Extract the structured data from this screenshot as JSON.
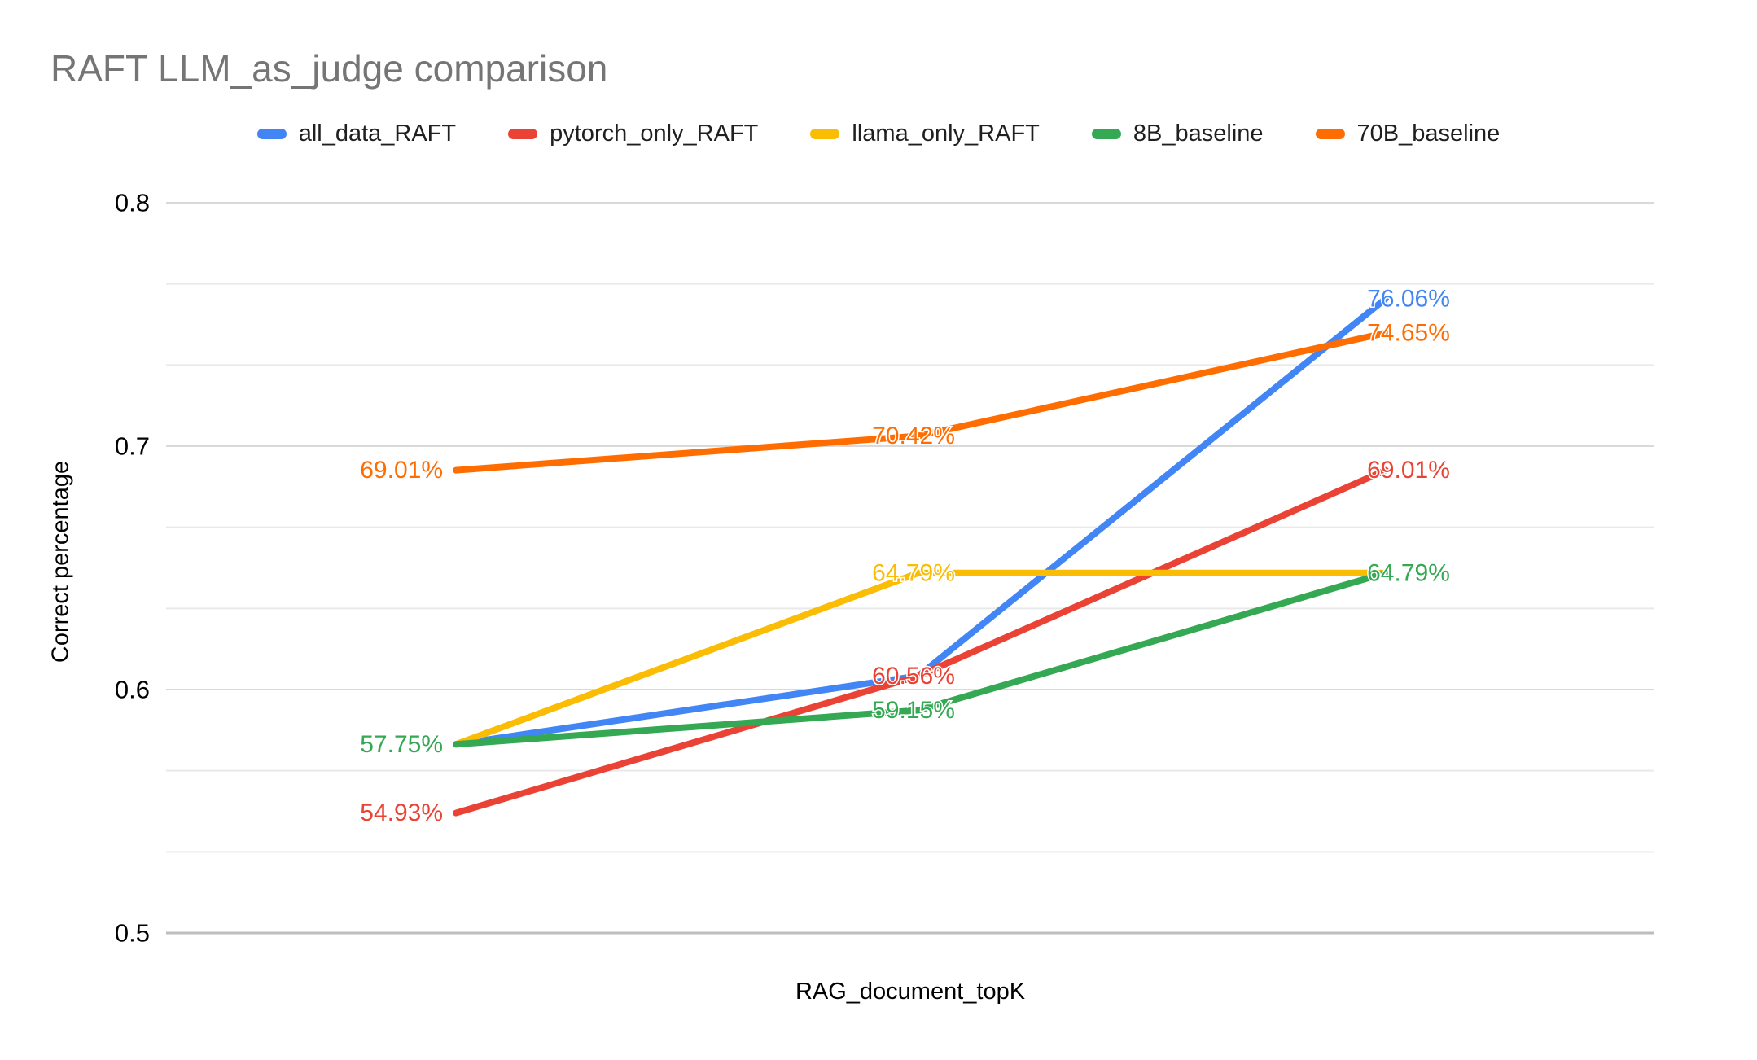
{
  "chart_data": {
    "type": "line",
    "title": "RAFT LLM_as_judge comparison",
    "xlabel": "RAG_document_topK",
    "ylabel": "Correct percentage",
    "ylim": [
      0.5,
      0.8
    ],
    "y_ticks": [
      {
        "value": 0.8,
        "label": "0.8"
      },
      {
        "value": 0.7,
        "label": "0.7"
      },
      {
        "value": 0.6,
        "label": "0.6"
      },
      {
        "value": 0.5,
        "label": "0.5"
      }
    ],
    "minor_gridlines_between_majors": 2,
    "grid": true,
    "legend_position": "top",
    "x_tick_labels_visible": false,
    "num_x_points": 3,
    "series": [
      {
        "name": "all_data_RAFT",
        "color": "#4285F4",
        "values": [
          0.5775,
          0.6056,
          0.7606
        ],
        "point_labels": [
          null,
          null,
          "76.06%"
        ]
      },
      {
        "name": "pytorch_only_RAFT",
        "color": "#EA4335",
        "values": [
          0.5493,
          0.6056,
          0.6901
        ],
        "point_labels": [
          "54.93%",
          "60.56%",
          "69.01%"
        ]
      },
      {
        "name": "llama_only_RAFT",
        "color": "#FBBC04",
        "values": [
          0.5775,
          0.6479,
          0.6479
        ],
        "point_labels": [
          null,
          "64.79%",
          null
        ]
      },
      {
        "name": "8B_baseline",
        "color": "#34A853",
        "values": [
          0.5775,
          0.5915,
          0.6479
        ],
        "point_labels": [
          "57.75%",
          "59.15%",
          "64.79%"
        ]
      },
      {
        "name": "70B_baseline",
        "color": "#FF6D01",
        "values": [
          0.6901,
          0.7042,
          0.7465
        ],
        "point_labels": [
          "69.01%",
          "70.42%",
          "74.65%"
        ]
      }
    ],
    "styles": {
      "background": "#FFFFFF",
      "title_color": "#757575",
      "axis_text_color": "#000000",
      "legend_text_color": "#1F1F1F",
      "major_gridline_color": "#D9D9D9",
      "minor_gridline_color": "#E9E9E9",
      "baseline_color": "#BDBDBD",
      "line_width": 8,
      "data_label_font_size": 30
    }
  }
}
